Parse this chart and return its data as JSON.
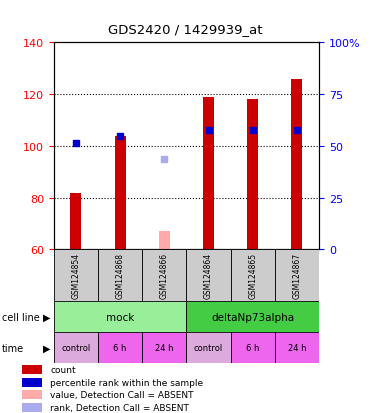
{
  "title": "GDS2420 / 1429939_at",
  "samples": [
    "GSM124854",
    "GSM124868",
    "GSM124866",
    "GSM124864",
    "GSM124865",
    "GSM124867"
  ],
  "count_values": [
    82,
    104,
    null,
    119,
    118,
    126
  ],
  "count_absent": [
    null,
    null,
    67,
    null,
    null,
    null
  ],
  "rank_values": [
    101,
    104,
    null,
    106,
    106,
    106
  ],
  "rank_absent": [
    null,
    null,
    95,
    null,
    null,
    null
  ],
  "ylim_left": [
    60,
    140
  ],
  "ylim_right": [
    0,
    100
  ],
  "yticks_left": [
    60,
    80,
    100,
    120,
    140
  ],
  "yticks_right": [
    0,
    25,
    50,
    75,
    100
  ],
  "ytick_labels_right": [
    "0",
    "25",
    "50",
    "75",
    "100%"
  ],
  "color_count": "#cc0000",
  "color_rank": "#0000cc",
  "color_count_absent": "#ffaaaa",
  "color_rank_absent": "#aaaaee",
  "bar_width": 0.25,
  "marker_size": 5,
  "cell_line_labels": [
    "mock",
    "deltaNp73alpha"
  ],
  "cell_line_spans": [
    [
      0,
      3
    ],
    [
      3,
      6
    ]
  ],
  "cell_line_color_mock": "#99ee99",
  "cell_line_color_delta": "#44cc44",
  "time_labels": [
    "control",
    "6 h",
    "24 h",
    "control",
    "6 h",
    "24 h"
  ],
  "time_colors": [
    "#ddaadd",
    "#ee66ee",
    "#ee66ee",
    "#ddaadd",
    "#ee66ee",
    "#ee66ee"
  ],
  "sample_box_color": "#cccccc",
  "background_color": "#ffffff",
  "legend_items": [
    {
      "label": "count",
      "color": "#cc0000"
    },
    {
      "label": "percentile rank within the sample",
      "color": "#0000cc"
    },
    {
      "label": "value, Detection Call = ABSENT",
      "color": "#ffaaaa"
    },
    {
      "label": "rank, Detection Call = ABSENT",
      "color": "#aaaaee"
    }
  ]
}
